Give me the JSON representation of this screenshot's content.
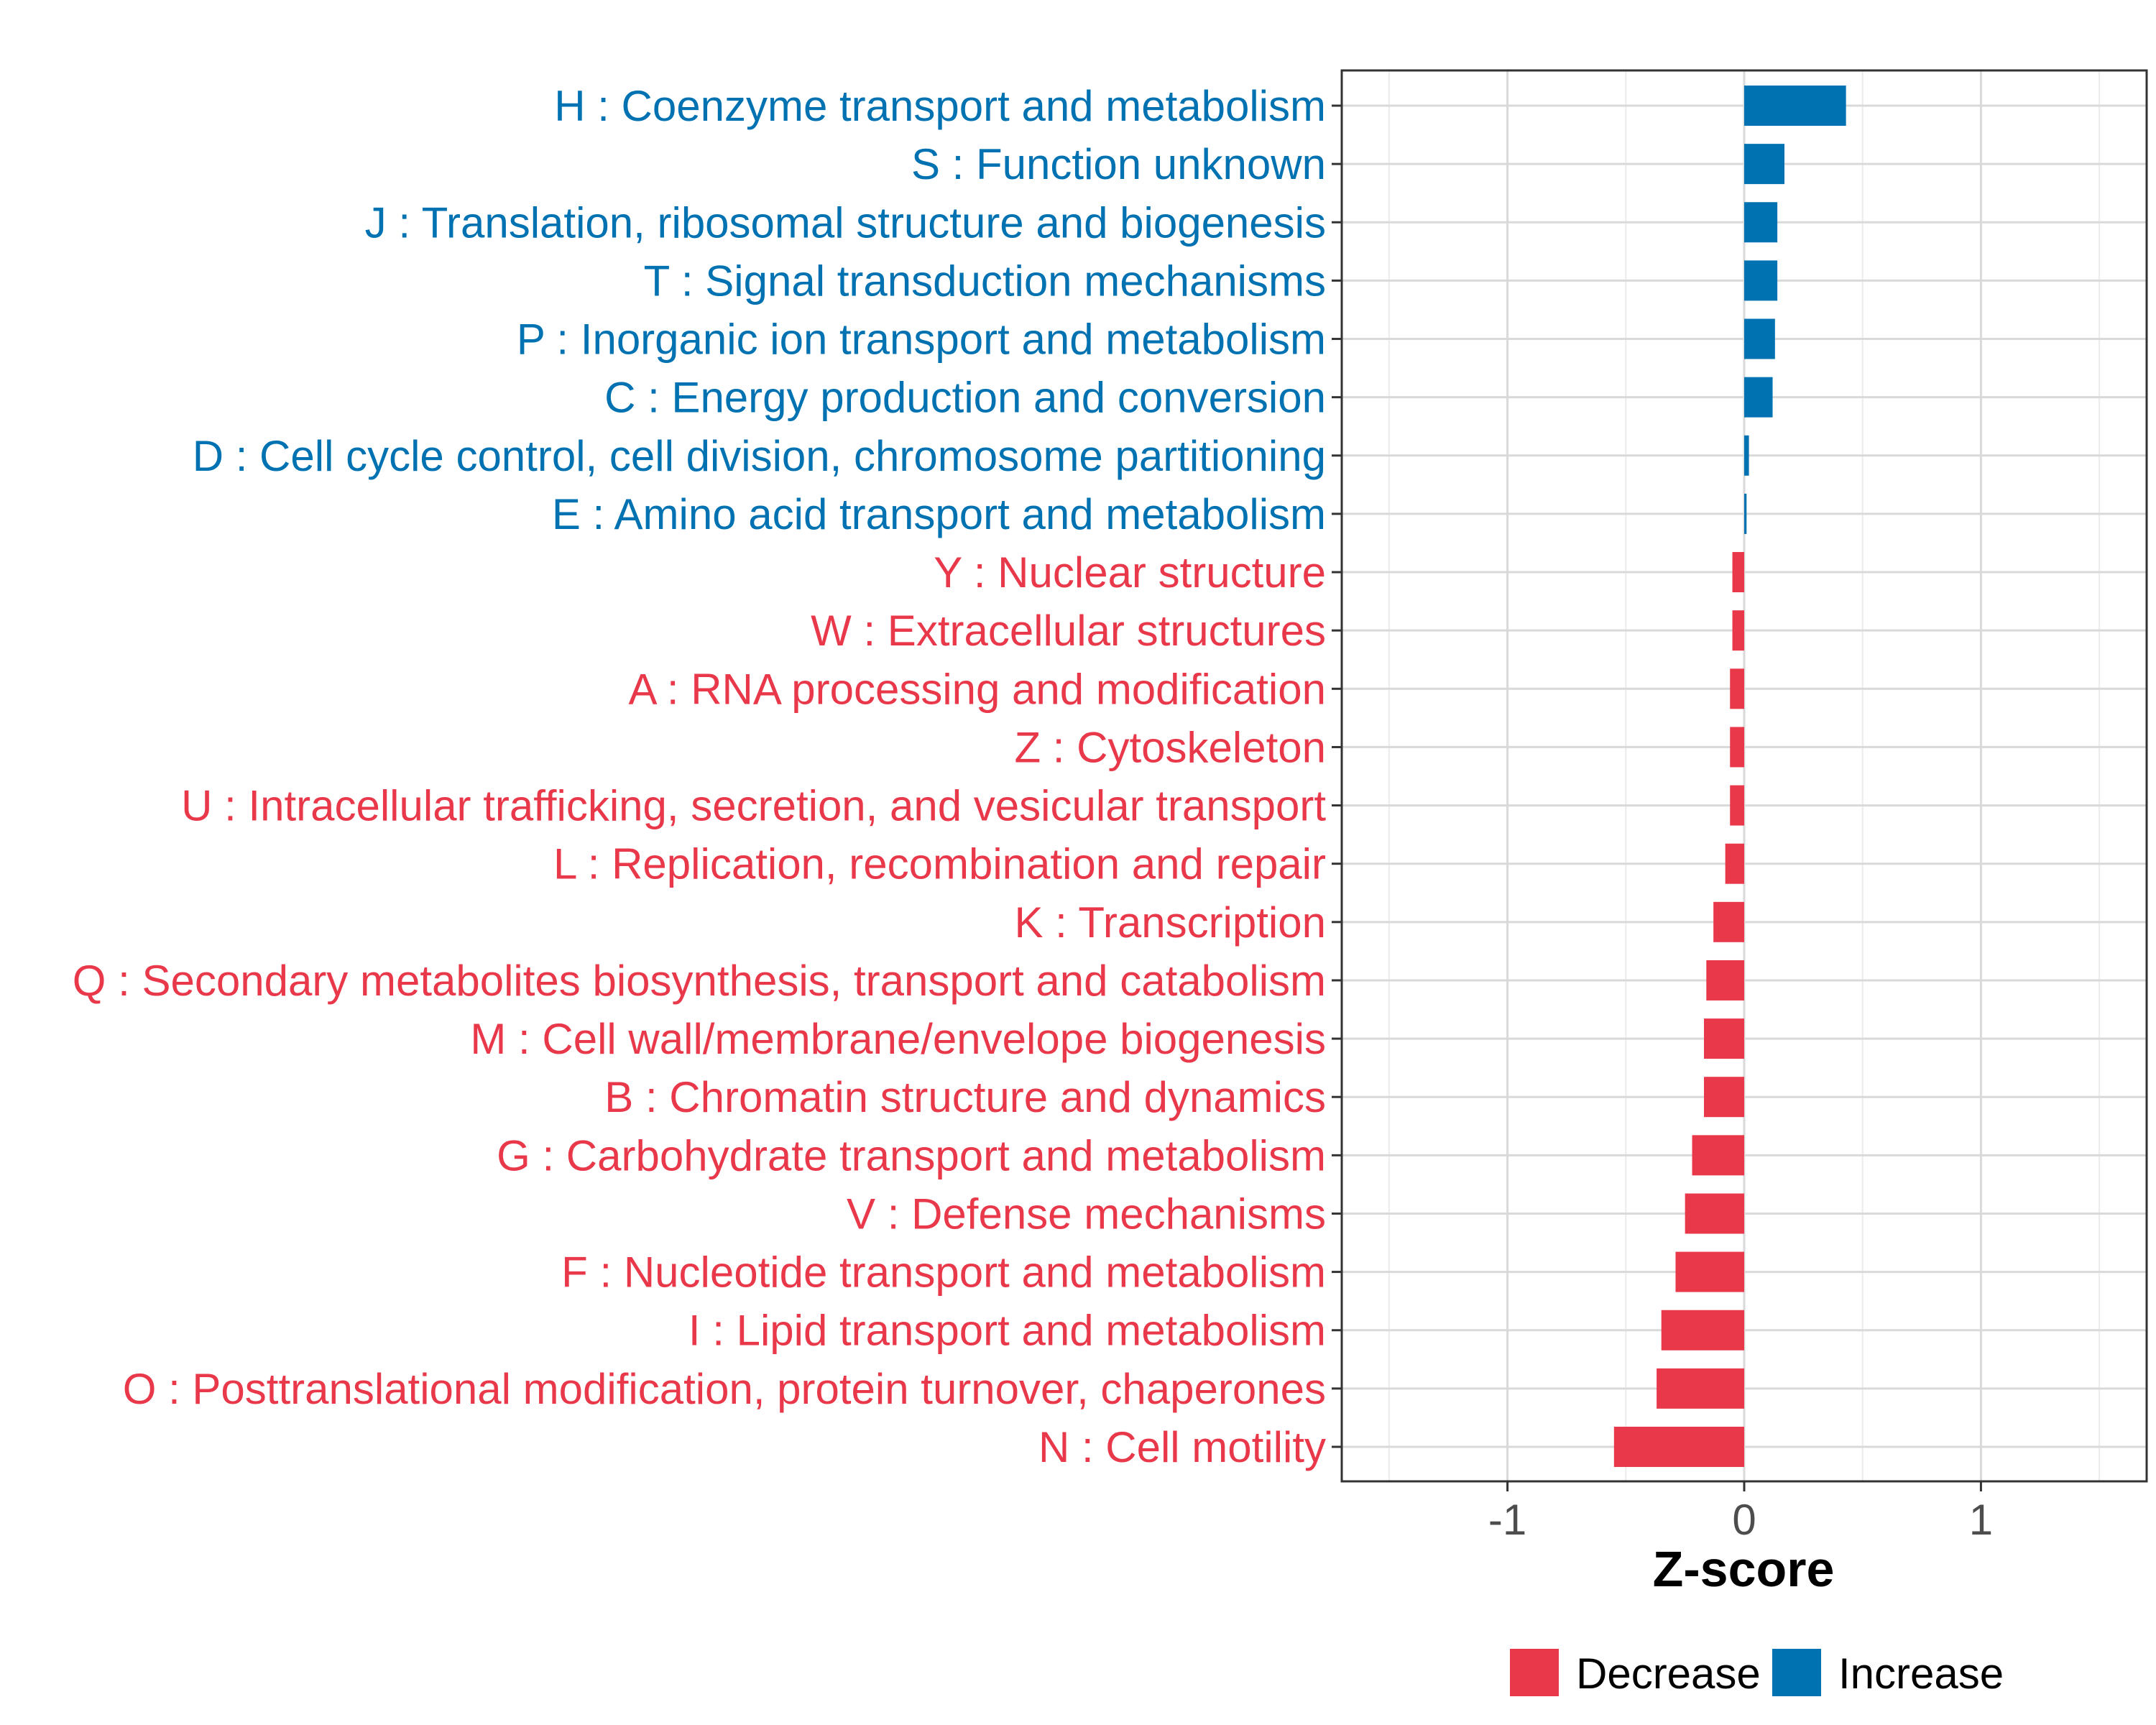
{
  "chart_data": {
    "type": "bar",
    "orientation": "horizontal",
    "title": "",
    "xlabel": "Z-score",
    "ylabel": "",
    "xlim": [
      -1.7,
      1.7
    ],
    "xticks": [
      -1,
      0,
      1
    ],
    "xtick_labels": [
      "-1",
      "0",
      "1"
    ],
    "grid": true,
    "legend_position": "bottom",
    "colors": {
      "Increase": "#0072b2",
      "Decrease": "#e8384a"
    },
    "legend": [
      {
        "label": "Decrease",
        "color": "#e8384a"
      },
      {
        "label": "Increase",
        "color": "#0072b2"
      }
    ],
    "categories": [
      "H : Coenzyme transport and metabolism",
      "S : Function unknown",
      "J : Translation, ribosomal structure and biogenesis",
      "T : Signal transduction mechanisms",
      "P : Inorganic ion transport and metabolism",
      "C : Energy production and conversion",
      "D : Cell cycle control, cell division, chromosome partitioning",
      "E : Amino acid transport and metabolism",
      "Y : Nuclear structure",
      "W : Extracellular structures",
      "A : RNA processing and modification",
      "Z : Cytoskeleton",
      "U : Intracellular trafficking, secretion, and vesicular transport",
      "L : Replication, recombination and repair",
      "K : Transcription",
      "Q : Secondary metabolites biosynthesis, transport and catabolism",
      "M : Cell wall/membrane/envelope biogenesis",
      "B : Chromatin structure and dynamics",
      "G : Carbohydrate transport and metabolism",
      "V : Defense mechanisms",
      "F : Nucleotide transport and metabolism",
      "I : Lipid transport and metabolism",
      "O : Posttranslational modification, protein turnover, chaperones",
      "N : Cell motility"
    ],
    "values": [
      0.43,
      0.17,
      0.14,
      0.14,
      0.13,
      0.12,
      0.02,
      0.01,
      -0.05,
      -0.05,
      -0.06,
      -0.06,
      -0.06,
      -0.08,
      -0.13,
      -0.16,
      -0.17,
      -0.17,
      -0.22,
      -0.25,
      -0.29,
      -0.35,
      -0.37,
      -0.55
    ],
    "groups": [
      "Increase",
      "Increase",
      "Increase",
      "Increase",
      "Increase",
      "Increase",
      "Increase",
      "Increase",
      "Decrease",
      "Decrease",
      "Decrease",
      "Decrease",
      "Decrease",
      "Decrease",
      "Decrease",
      "Decrease",
      "Decrease",
      "Decrease",
      "Decrease",
      "Decrease",
      "Decrease",
      "Decrease",
      "Decrease",
      "Decrease"
    ]
  }
}
